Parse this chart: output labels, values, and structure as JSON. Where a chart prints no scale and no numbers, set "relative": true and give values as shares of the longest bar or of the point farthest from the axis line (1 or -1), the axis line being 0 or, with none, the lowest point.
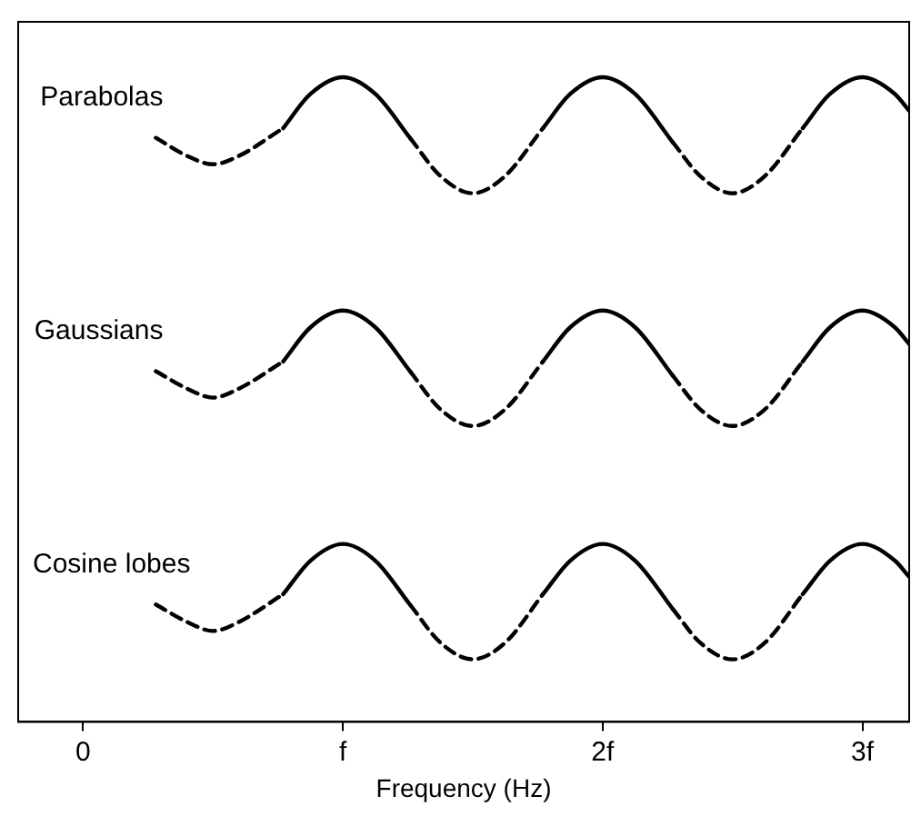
{
  "chart_data": {
    "type": "line",
    "relative": true,
    "xlabel": "Frequency (Hz)",
    "xlim": [
      -0.25,
      3.18
    ],
    "xticks": [
      {
        "value": 0,
        "label": "0"
      },
      {
        "value": 1,
        "label": "f"
      },
      {
        "value": 2,
        "label": "2f"
      },
      {
        "value": 3,
        "label": "3f"
      }
    ],
    "grid": false,
    "legend": false,
    "marker": "none",
    "x": [
      0.28,
      0.4,
      0.5,
      0.6,
      0.77,
      0.875,
      1,
      1.125,
      1.26,
      1.375,
      1.5,
      1.625,
      1.77,
      1.875,
      2,
      2.125,
      2.27,
      2.375,
      2.5,
      2.625,
      2.77,
      2.875,
      3,
      3.125,
      3.18
    ],
    "series": [
      {
        "color": "#000000",
        "line_style": "solid",
        "values": [
          null,
          null,
          null,
          null,
          0.921,
          0.974,
          1,
          0.974,
          0.905,
          null,
          null,
          null,
          0.921,
          0.974,
          1,
          0.974,
          0.899,
          null,
          null,
          null,
          0.921,
          0.974,
          1,
          0.974,
          0.948
        ]
      },
      {
        "name": "Parabolas",
        "color": "#000000",
        "line_style": "dashed",
        "values": [
          0.906,
          0.878,
          0.865,
          0.878,
          0.921,
          null,
          null,
          null,
          0.905,
          0.847,
          0.82,
          0.847,
          0.921,
          null,
          null,
          null,
          0.899,
          0.847,
          0.82,
          0.847,
          0.921,
          null,
          null,
          null,
          null
        ]
      },
      {
        "color": "#000000",
        "line_style": "solid",
        "values": [
          null,
          null,
          null,
          null,
          0.559,
          0.612,
          0.638,
          0.612,
          0.543,
          null,
          null,
          null,
          0.559,
          0.612,
          0.638,
          0.612,
          0.537,
          null,
          null,
          null,
          0.559,
          0.612,
          0.638,
          0.612,
          0.586
        ]
      },
      {
        "name": "Gaussians",
        "color": "#000000",
        "line_style": "dashed",
        "values": [
          0.544,
          0.517,
          0.503,
          0.517,
          0.559,
          null,
          null,
          null,
          0.543,
          0.485,
          0.459,
          0.485,
          0.559,
          null,
          null,
          null,
          0.537,
          0.485,
          0.459,
          0.485,
          0.559,
          null,
          null,
          null,
          null
        ]
      },
      {
        "color": "#000000",
        "line_style": "solid",
        "values": [
          null,
          null,
          null,
          null,
          0.198,
          0.25,
          0.276,
          0.25,
          0.181,
          null,
          null,
          null,
          0.198,
          0.25,
          0.276,
          0.25,
          0.175,
          null,
          null,
          null,
          0.198,
          0.25,
          0.276,
          0.25,
          0.225
        ]
      },
      {
        "name": "Cosine lobes",
        "color": "#000000",
        "line_style": "dashed",
        "values": [
          0.182,
          0.155,
          0.141,
          0.155,
          0.198,
          null,
          null,
          null,
          0.181,
          0.123,
          0.097,
          0.123,
          0.198,
          null,
          null,
          null,
          0.175,
          0.123,
          0.097,
          0.123,
          0.198,
          null,
          null,
          null,
          null
        ]
      }
    ]
  }
}
